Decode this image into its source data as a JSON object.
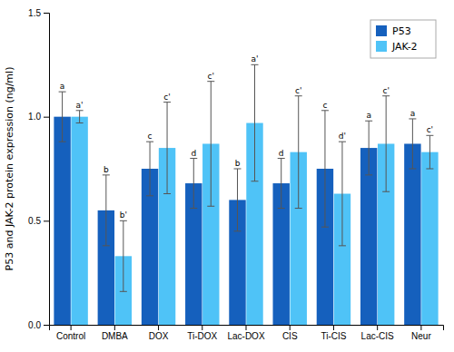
{
  "chart_data": {
    "type": "bar",
    "categories": [
      "Control",
      "DMBA",
      "DOX",
      "Ti-DOX",
      "Lac-DOX",
      "CIS",
      "Ti-CIS",
      "Lac-CIS",
      "Neur"
    ],
    "series": [
      {
        "name": "P53",
        "color": "#1560BD",
        "values": [
          1.0,
          0.55,
          0.75,
          0.68,
          0.6,
          0.68,
          0.75,
          0.85,
          0.87
        ],
        "errors": [
          0.12,
          0.17,
          0.13,
          0.12,
          0.15,
          0.12,
          0.28,
          0.13,
          0.12
        ],
        "labels": [
          "a",
          "b",
          "c",
          "d",
          "b",
          "d",
          "c",
          "a",
          "a"
        ]
      },
      {
        "name": "JAK-2",
        "color": "#4FC3F7",
        "values": [
          1.0,
          0.33,
          0.85,
          0.87,
          0.97,
          0.83,
          0.63,
          0.87,
          0.83
        ],
        "errors": [
          0.03,
          0.17,
          0.22,
          0.3,
          0.28,
          0.27,
          0.25,
          0.23,
          0.08
        ],
        "labels": [
          "a'",
          "b'",
          "c'",
          "c'",
          "a'",
          "c'",
          "d'",
          "c'",
          "c'"
        ]
      }
    ],
    "ylabel": "P53 and JAK-2 protein expression (ng/ml)",
    "ylim": [
      0.0,
      1.5
    ],
    "yticks": [
      {
        "value": 0.0,
        "label": "0.0"
      },
      0.5,
      {
        "value": 1.0,
        "label": "1.0"
      },
      1.5
    ],
    "legend": "upper right",
    "grid": false
  }
}
